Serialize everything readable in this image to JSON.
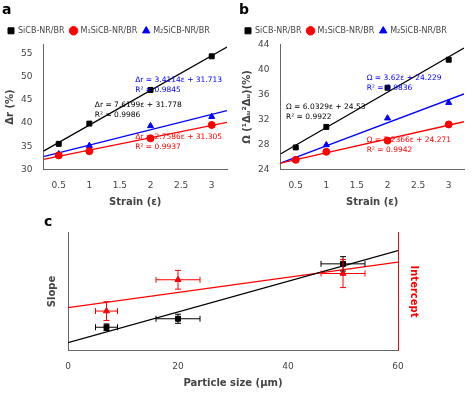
{
  "chart_data": [
    {
      "type": "scatter",
      "title": "a",
      "x_label": "Strain (ε)",
      "y_label": "Δr (%)",
      "xlim": [
        0.25,
        3.25
      ],
      "ylim": [
        30,
        57
      ],
      "xticks": [
        0.5,
        1,
        1.5,
        2,
        2.5,
        3
      ],
      "yticks": [
        30,
        35,
        40,
        45,
        50,
        55
      ],
      "grid": false,
      "legend": "upper left",
      "series": [
        {
          "type": "line",
          "color": "black",
          "x": [
            0.25,
            3.25
          ],
          "values": [
            33.9229,
            56.5093
          ]
        },
        {
          "type": "line",
          "color": "red",
          "x": [
            0.25,
            3.25
          ],
          "values": [
            32.1085,
            40.1627
          ]
        },
        {
          "type": "line",
          "color": "blue",
          "x": [
            0.25,
            3.25
          ],
          "values": [
            32.7136,
            42.7203
          ]
        },
        {
          "name": "SiCB-NR/BR",
          "color": "black",
          "marker": "square",
          "x": [
            0.5,
            1.0,
            2.0,
            3.0
          ],
          "values": [
            35.5,
            39.9,
            47.2,
            54.5
          ]
        },
        {
          "name": "M₁SiCB-NR/BR",
          "color": "red",
          "marker": "circle",
          "x": [
            0.5,
            1.0,
            2.0,
            3.0
          ],
          "values": [
            33.0,
            33.9,
            36.7,
            39.6
          ]
        },
        {
          "name": "M₂SiCB-NR/BR",
          "color": "blue",
          "marker": "triangle",
          "x": [
            0.5,
            1.0,
            2.0,
            3.0
          ],
          "values": [
            33.3,
            35.1,
            39.4,
            41.4
          ]
        }
      ],
      "annotations": [
        {
          "text": "Δr = 7.6199ε + 31.778",
          "color": "black"
        },
        {
          "text": "R² = 0.9986",
          "color": "black"
        },
        {
          "text": "Δr = 3.4114ε + 31.713",
          "color": "blue"
        },
        {
          "text": "R² = 0.9845",
          "color": "blue"
        },
        {
          "text": "Δr = 2.7586ε + 31.305",
          "color": "red"
        },
        {
          "text": "R² = 0.9937",
          "color": "red"
        }
      ]
    },
    {
      "type": "scatter",
      "title": "b",
      "x_label": "Strain (ε)",
      "y_label": "Ω (¹Δᵤ²Δᵤ)(%)",
      "xlim": [
        0.25,
        3.25
      ],
      "ylim": [
        24,
        44
      ],
      "xticks": [
        0.5,
        1,
        1.5,
        2,
        2.5,
        3
      ],
      "yticks": [
        24,
        28,
        32,
        36,
        40,
        44
      ],
      "grid": false,
      "legend": "upper left",
      "series": [
        {
          "type": "line",
          "color": "black",
          "x": [
            0.25,
            3.25
          ],
          "values": [
            26.4475,
            43.4712
          ]
        },
        {
          "type": "line",
          "color": "red",
          "x": [
            0.25,
            3.25
          ],
          "values": [
            24.972,
            31.6331
          ]
        },
        {
          "type": "line",
          "color": "blue",
          "x": [
            0.25,
            3.25
          ],
          "values": [
            24.9805,
            36.0958
          ]
        },
        {
          "name": "SiCB-NR/BR",
          "color": "black",
          "marker": "square",
          "x": [
            0.5,
            1.0,
            2.0,
            3.0
          ],
          "values": [
            27.5,
            30.8,
            37.1,
            41.6
          ]
        },
        {
          "name": "M₁SiCB-NR/BR",
          "color": "red",
          "marker": "circle",
          "x": [
            0.5,
            1.0,
            2.0,
            3.0
          ],
          "values": [
            25.5,
            26.8,
            28.6,
            31.2
          ]
        },
        {
          "name": "M₂SiCB-NR/BR",
          "color": "blue",
          "marker": "triangle",
          "x": [
            0.5,
            1.0,
            2.0,
            3.0
          ],
          "values": [
            25.5,
            27.9,
            32.2,
            34.7
          ]
        }
      ],
      "annotations": [
        {
          "text": "Ω = 6.0329ε + 24.53",
          "color": "black"
        },
        {
          "text": "R² = 0.9922",
          "color": "black"
        },
        {
          "text": "Ω = 3.62ε + 24.229",
          "color": "blue"
        },
        {
          "text": "R² = 0.9836",
          "color": "blue"
        },
        {
          "text": "Ω = 2.2366ε + 24.271",
          "color": "red"
        },
        {
          "text": "R² = 0.9942",
          "color": "red"
        }
      ]
    },
    {
      "type": "scatter",
      "title": "c",
      "x_label": "Particle size (μm)",
      "y_label": "Slope",
      "y2_label": "Intercept",
      "xlim": [
        0,
        60
      ],
      "xticks": [
        0,
        20,
        40,
        60
      ],
      "ylim": [
        1.0,
        10.0
      ],
      "y2lim": [
        30.8,
        32.3
      ],
      "tick_labels": "x",
      "grid": false,
      "series": [
        {
          "color": "black",
          "marker": "square",
          "x": [
            7,
            20,
            50
          ],
          "values": [
            2.76,
            3.41,
            7.62
          ],
          "yerr": [
            0.25,
            0.35,
            0.55
          ],
          "xerr": [
            2,
            4,
            4
          ]
        },
        {
          "type": "line",
          "color": "black",
          "x": [
            0,
            60
          ],
          "values": [
            1.5732,
            8.641
          ]
        },
        {
          "color": "red",
          "marker": "triangle",
          "axis": "y2",
          "x": [
            7,
            20,
            50
          ],
          "values": [
            31.3,
            31.7,
            31.78
          ],
          "yerr": [
            0.12,
            0.12,
            0.18
          ],
          "xerr": [
            2,
            4,
            4
          ]
        },
        {
          "type": "line",
          "color": "red",
          "axis": "y2",
          "x": [
            0,
            60
          ],
          "values": [
            31.3449,
            31.9256
          ]
        }
      ]
    }
  ]
}
